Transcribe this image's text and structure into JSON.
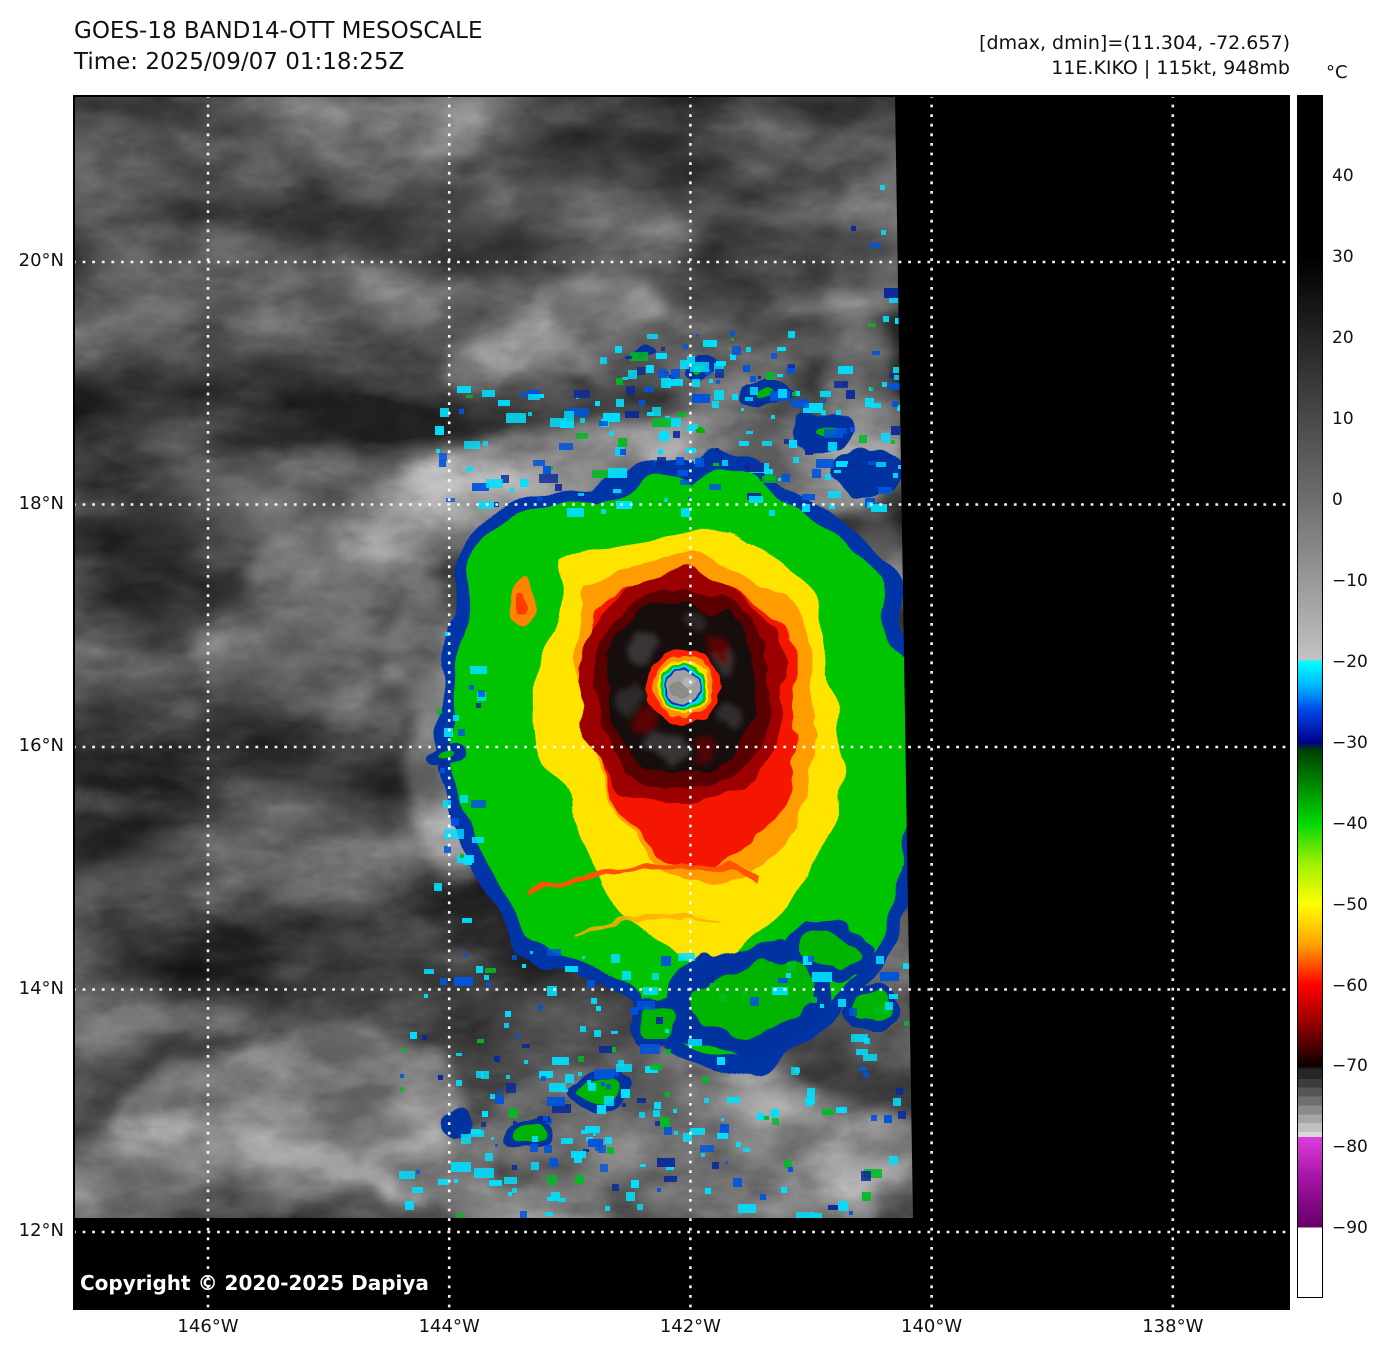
{
  "header": {
    "title": "GOES-18 BAND14-OTT MESOSCALE",
    "time_line": "Time: 2025/09/07 01:18:25Z",
    "dmax_dmin": "[dmax, dmin]=(11.304, -72.657)",
    "storm_info": "11E.KIKO | 115kt, 948mb"
  },
  "map": {
    "copyright": "Copyright © 2020-2025 Dapiya",
    "lat_ticks": [
      {
        "label": "20°N",
        "deg": 20
      },
      {
        "label": "18°N",
        "deg": 18
      },
      {
        "label": "16°N",
        "deg": 16
      },
      {
        "label": "14°N",
        "deg": 14
      },
      {
        "label": "12°N",
        "deg": 12
      }
    ],
    "lon_ticks": [
      {
        "label": "146°W",
        "deg": 146
      },
      {
        "label": "144°W",
        "deg": 144
      },
      {
        "label": "142°W",
        "deg": 142
      },
      {
        "label": "140°W",
        "deg": 140
      },
      {
        "label": "138°W",
        "deg": 138
      }
    ]
  },
  "colorbar": {
    "unit": "°C",
    "vmax": 50,
    "vmin": -98.6,
    "tick_values": [
      40,
      30,
      20,
      10,
      0,
      -10,
      -20,
      -30,
      -40,
      -50,
      -60,
      -70,
      -80,
      -90
    ],
    "tick_labels": [
      "40",
      "30",
      "20",
      "10",
      "0",
      "−10",
      "−20",
      "−30",
      "−40",
      "−50",
      "−60",
      "−70",
      "−80",
      "−90"
    ],
    "stops": [
      [
        0.0,
        "#000000"
      ],
      [
        0.1346,
        "#000000"
      ],
      [
        0.3365,
        "#6e6e6e"
      ],
      [
        0.469,
        "#c2c2c2"
      ],
      [
        0.471,
        "#00ffff"
      ],
      [
        0.4912,
        "#00b4ff"
      ],
      [
        0.5114,
        "#0048e8"
      ],
      [
        0.5383,
        "#000088"
      ],
      [
        0.545,
        "#004000"
      ],
      [
        0.6056,
        "#00d800"
      ],
      [
        0.6393,
        "#a0f000"
      ],
      [
        0.6729,
        "#ffff00"
      ],
      [
        0.7066,
        "#ffa200"
      ],
      [
        0.7402,
        "#ff0000"
      ],
      [
        0.7672,
        "#a80000"
      ],
      [
        0.8075,
        "#0d0000"
      ],
      [
        0.8109,
        "#262626"
      ],
      [
        0.8183,
        "#262626"
      ],
      [
        0.8183,
        "#3c3c3c"
      ],
      [
        0.8257,
        "#3c3c3c"
      ],
      [
        0.8257,
        "#555555"
      ],
      [
        0.8331,
        "#555555"
      ],
      [
        0.8331,
        "#6f6f6f"
      ],
      [
        0.8405,
        "#6f6f6f"
      ],
      [
        0.8405,
        "#8a8a8a"
      ],
      [
        0.8479,
        "#8a8a8a"
      ],
      [
        0.8479,
        "#a5a5a5"
      ],
      [
        0.8553,
        "#a5a5a5"
      ],
      [
        0.8553,
        "#c0c0c0"
      ],
      [
        0.8627,
        "#c0c0c0"
      ],
      [
        0.8627,
        "#d8d8d8"
      ],
      [
        0.8668,
        "#d8d8d8"
      ],
      [
        0.8668,
        "#de3cde"
      ],
      [
        0.9018,
        "#a313a3"
      ],
      [
        0.9388,
        "#6b006b"
      ],
      [
        0.9422,
        "#6b006b"
      ],
      [
        0.9422,
        "#ffffff"
      ],
      [
        1.0,
        "#ffffff"
      ]
    ]
  }
}
